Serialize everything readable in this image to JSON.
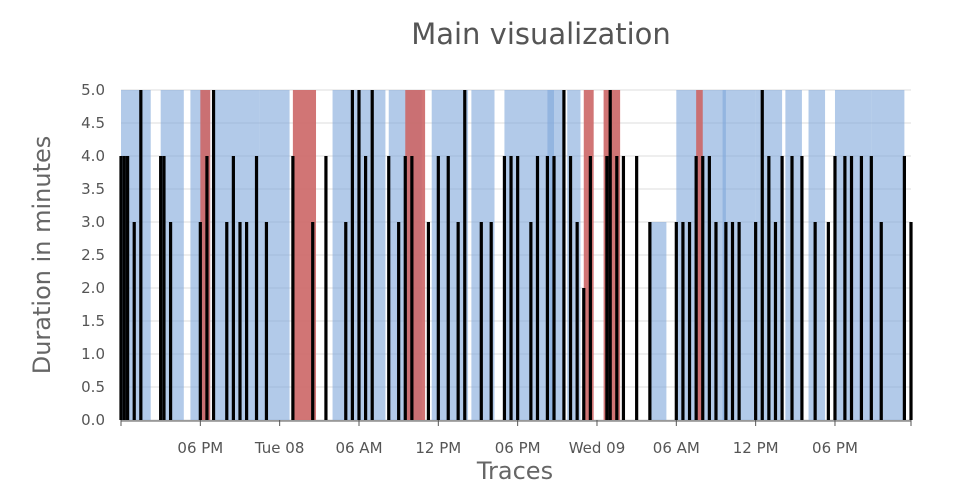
{
  "chart_data": {
    "type": "bar",
    "title": "Main visualization",
    "xlabel": "Traces",
    "ylabel": "Duration in minutes",
    "x_range": [
      "Mon 07 12:00",
      "Wed 09 23:45"
    ],
    "ylim": [
      0,
      5
    ],
    "y_ticks": [
      "0.0",
      "0.5",
      "1.0",
      "1.5",
      "2.0",
      "2.5",
      "3.0",
      "3.5",
      "4.0",
      "4.5",
      "5.0"
    ],
    "x_ticks": [
      {
        "label": "06 PM",
        "at": "Mon 07 18:00"
      },
      {
        "label": "Tue 08",
        "at": "Tue 08 00:00"
      },
      {
        "label": "06 AM",
        "at": "Tue 08 06:00"
      },
      {
        "label": "12 PM",
        "at": "Tue 08 12:00"
      },
      {
        "label": "06 PM",
        "at": "Tue 08 18:00"
      },
      {
        "label": "Wed 09",
        "at": "Wed 09 00:00"
      },
      {
        "label": "06 AM",
        "at": "Wed 09 06:00"
      },
      {
        "label": "12 PM",
        "at": "Wed 09 12:00"
      },
      {
        "label": "06 PM",
        "at": "Wed 09 18:00"
      }
    ],
    "grid": true,
    "legend": "none",
    "colors": {
      "blue": "#7ea6db",
      "red": "#cc6666",
      "black": "#000000"
    },
    "series": [
      {
        "color": "blue",
        "values": [
          {
            "start": "Mon 07 12:00",
            "end": "Mon 07 14:15",
            "y": 5
          },
          {
            "start": "Mon 07 15:00",
            "end": "Mon 07 16:45",
            "y": 5
          },
          {
            "start": "Mon 07 17:15",
            "end": "Mon 07 18:45",
            "y": 5
          },
          {
            "start": "Mon 07 19:00",
            "end": "Mon 07 22:30",
            "y": 5
          },
          {
            "start": "Mon 07 22:30",
            "end": "Tue 08 00:45",
            "y": 5
          },
          {
            "start": "Tue 08 04:00",
            "end": "Tue 08 08:00",
            "y": 5
          },
          {
            "start": "Tue 08 08:15",
            "end": "Tue 08 10:45",
            "y": 5
          },
          {
            "start": "Tue 08 11:30",
            "end": "Tue 08 14:15",
            "y": 5
          },
          {
            "start": "Tue 08 14:30",
            "end": "Tue 08 16:15",
            "y": 5
          },
          {
            "start": "Tue 08 17:00",
            "end": "Tue 08 20:45",
            "y": 5
          },
          {
            "start": "Tue 08 20:15",
            "end": "Tue 08 21:30",
            "y": 5
          },
          {
            "start": "Tue 08 21:45",
            "end": "Tue 08 22:45",
            "y": 5
          },
          {
            "start": "Wed 09 04:00",
            "end": "Wed 09 05:15",
            "y": 3
          },
          {
            "start": "Wed 09 06:00",
            "end": "Wed 09 09:45",
            "y": 5
          },
          {
            "start": "Wed 09 09:30",
            "end": "Wed 09 12:00",
            "y": 5
          },
          {
            "start": "Wed 09 12:00",
            "end": "Wed 09 14:00",
            "y": 5
          },
          {
            "start": "Wed 09 14:15",
            "end": "Wed 09 15:30",
            "y": 5
          },
          {
            "start": "Wed 09 16:00",
            "end": "Wed 09 17:15",
            "y": 5
          },
          {
            "start": "Wed 09 18:00",
            "end": "Wed 09 20:45",
            "y": 5
          },
          {
            "start": "Wed 09 20:45",
            "end": "Wed 09 23:15",
            "y": 5
          }
        ]
      },
      {
        "color": "red",
        "values": [
          {
            "start": "Mon 07 18:00",
            "end": "Mon 07 18:45",
            "y": 5
          },
          {
            "start": "Tue 08 01:00",
            "end": "Tue 08 02:45",
            "y": 5
          },
          {
            "start": "Tue 08 09:30",
            "end": "Tue 08 11:00",
            "y": 5
          },
          {
            "start": "Tue 08 23:00",
            "end": "Tue 08 23:45",
            "y": 5
          },
          {
            "start": "Wed 09 00:30",
            "end": "Wed 09 01:45",
            "y": 5
          },
          {
            "start": "Wed 09 07:30",
            "end": "Wed 09 08:00",
            "y": 5
          }
        ]
      },
      {
        "color": "black",
        "values": [
          {
            "x": "Mon 07 12:00",
            "y": 4
          },
          {
            "x": "Mon 07 12:15",
            "y": 4
          },
          {
            "x": "Mon 07 12:30",
            "y": 4
          },
          {
            "x": "Mon 07 13:00",
            "y": 3
          },
          {
            "x": "Mon 07 13:30",
            "y": 5
          },
          {
            "x": "Mon 07 15:00",
            "y": 4
          },
          {
            "x": "Mon 07 15:15",
            "y": 4
          },
          {
            "x": "Mon 07 15:45",
            "y": 3
          },
          {
            "x": "Mon 07 18:00",
            "y": 3
          },
          {
            "x": "Mon 07 18:30",
            "y": 4
          },
          {
            "x": "Mon 07 19:00",
            "y": 5
          },
          {
            "x": "Mon 07 20:00",
            "y": 3
          },
          {
            "x": "Mon 07 20:30",
            "y": 4
          },
          {
            "x": "Mon 07 21:00",
            "y": 3
          },
          {
            "x": "Mon 07 21:30",
            "y": 3
          },
          {
            "x": "Mon 07 22:15",
            "y": 4
          },
          {
            "x": "Mon 07 23:00",
            "y": 3
          },
          {
            "x": "Tue 08 01:00",
            "y": 4
          },
          {
            "x": "Tue 08 02:30",
            "y": 3
          },
          {
            "x": "Tue 08 03:30",
            "y": 4
          },
          {
            "x": "Tue 08 05:00",
            "y": 3
          },
          {
            "x": "Tue 08 05:30",
            "y": 5
          },
          {
            "x": "Tue 08 06:00",
            "y": 5
          },
          {
            "x": "Tue 08 06:30",
            "y": 4
          },
          {
            "x": "Tue 08 07:00",
            "y": 5
          },
          {
            "x": "Tue 08 08:15",
            "y": 4
          },
          {
            "x": "Tue 08 09:00",
            "y": 3
          },
          {
            "x": "Tue 08 09:30",
            "y": 4
          },
          {
            "x": "Tue 08 10:00",
            "y": 4
          },
          {
            "x": "Tue 08 11:15",
            "y": 3
          },
          {
            "x": "Tue 08 12:00",
            "y": 4
          },
          {
            "x": "Tue 08 12:45",
            "y": 4
          },
          {
            "x": "Tue 08 13:30",
            "y": 3
          },
          {
            "x": "Tue 08 14:00",
            "y": 5
          },
          {
            "x": "Tue 08 15:15",
            "y": 3
          },
          {
            "x": "Tue 08 16:00",
            "y": 3
          },
          {
            "x": "Tue 08 17:00",
            "y": 4
          },
          {
            "x": "Tue 08 17:30",
            "y": 4
          },
          {
            "x": "Tue 08 18:00",
            "y": 4
          },
          {
            "x": "Tue 08 19:00",
            "y": 3
          },
          {
            "x": "Tue 08 19:30",
            "y": 4
          },
          {
            "x": "Tue 08 20:15",
            "y": 4
          },
          {
            "x": "Tue 08 20:45",
            "y": 4
          },
          {
            "x": "Tue 08 21:30",
            "y": 5
          },
          {
            "x": "Tue 08 22:00",
            "y": 4
          },
          {
            "x": "Tue 08 22:30",
            "y": 3
          },
          {
            "x": "Tue 08 23:00",
            "y": 2
          },
          {
            "x": "Tue 08 23:30",
            "y": 4
          },
          {
            "x": "Wed 09 00:45",
            "y": 4
          },
          {
            "x": "Wed 09 01:00",
            "y": 5
          },
          {
            "x": "Wed 09 01:30",
            "y": 4
          },
          {
            "x": "Wed 09 02:00",
            "y": 4
          },
          {
            "x": "Wed 09 03:00",
            "y": 4
          },
          {
            "x": "Wed 09 04:00",
            "y": 3
          },
          {
            "x": "Wed 09 06:00",
            "y": 3
          },
          {
            "x": "Wed 09 06:30",
            "y": 3
          },
          {
            "x": "Wed 09 07:00",
            "y": 3
          },
          {
            "x": "Wed 09 07:30",
            "y": 4
          },
          {
            "x": "Wed 09 08:00",
            "y": 4
          },
          {
            "x": "Wed 09 08:30",
            "y": 4
          },
          {
            "x": "Wed 09 09:00",
            "y": 3
          },
          {
            "x": "Wed 09 09:45",
            "y": 3
          },
          {
            "x": "Wed 09 10:15",
            "y": 3
          },
          {
            "x": "Wed 09 10:45",
            "y": 3
          },
          {
            "x": "Wed 09 12:00",
            "y": 3
          },
          {
            "x": "Wed 09 12:30",
            "y": 5
          },
          {
            "x": "Wed 09 13:00",
            "y": 4
          },
          {
            "x": "Wed 09 13:30",
            "y": 3
          },
          {
            "x": "Wed 09 14:00",
            "y": 4
          },
          {
            "x": "Wed 09 14:45",
            "y": 4
          },
          {
            "x": "Wed 09 15:30",
            "y": 4
          },
          {
            "x": "Wed 09 16:30",
            "y": 3
          },
          {
            "x": "Wed 09 17:30",
            "y": 3
          },
          {
            "x": "Wed 09 18:00",
            "y": 4
          },
          {
            "x": "Wed 09 18:45",
            "y": 4
          },
          {
            "x": "Wed 09 19:15",
            "y": 4
          },
          {
            "x": "Wed 09 20:00",
            "y": 4
          },
          {
            "x": "Wed 09 20:45",
            "y": 4
          },
          {
            "x": "Wed 09 21:30",
            "y": 3
          },
          {
            "x": "Wed 09 23:15",
            "y": 4
          },
          {
            "x": "Wed 09 23:45",
            "y": 3
          }
        ]
      }
    ]
  }
}
